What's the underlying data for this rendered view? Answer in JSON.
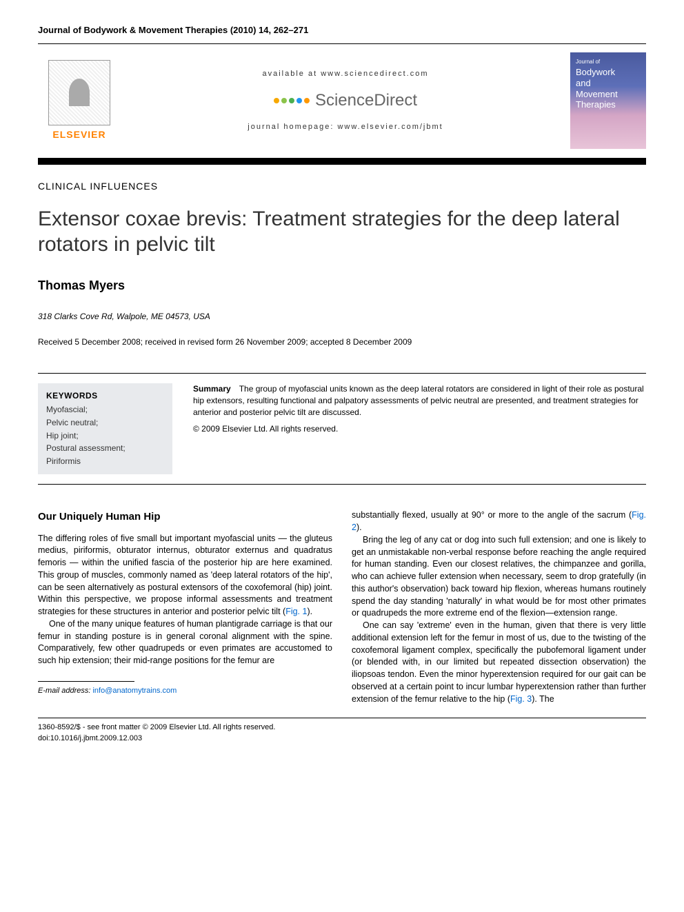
{
  "journal_header": "Journal of Bodywork & Movement Therapies (2010) 14, 262–271",
  "banner": {
    "available": "available at www.sciencedirect.com",
    "sciencedirect": "ScienceDirect",
    "homepage": "journal homepage: www.elsevier.com/jbmt",
    "elsevier_label": "ELSEVIER",
    "cover_journal_of": "Journal of",
    "cover_title_1": "Bodywork",
    "cover_title_2": "and",
    "cover_title_3": "Movement",
    "cover_title_4": "Therapies",
    "sd_dot_colors": [
      "#f7a800",
      "#8bc34a",
      "#4caf50",
      "#2196f3",
      "#ff9800",
      "#f44336"
    ]
  },
  "section_type": "CLINICAL INFLUENCES",
  "article_title": "Extensor coxae brevis: Treatment strategies for the deep lateral rotators in pelvic tilt",
  "author": "Thomas Myers",
  "affiliation": "318 Clarks Cove Rd, Walpole, ME 04573, USA",
  "dates": "Received 5 December 2008; received in revised form 26 November 2009; accepted 8 December 2009",
  "keywords": {
    "heading": "KEYWORDS",
    "list": "Myofascial;\nPelvic neutral;\nHip joint;\nPostural assessment;\nPiriformis"
  },
  "summary": {
    "label": "Summary",
    "text": "The group of myofascial units known as the deep lateral rotators are considered in light of their role as postural hip extensors, resulting functional and palpatory assessments of pelvic neutral are presented, and treatment strategies for anterior and posterior pelvic tilt are discussed.",
    "copyright": "© 2009 Elsevier Ltd. All rights reserved."
  },
  "body": {
    "heading1": "Our Uniquely Human Hip",
    "col1_p1": "The differing roles of five small but important myofascial units — the gluteus medius, piriformis, obturator internus, obturator externus and quadratus femoris — within the unified fascia of the posterior hip are here examined. This group of muscles, commonly named as 'deep lateral rotators of the hip', can be seen alternatively as postural extensors of the coxofemoral (hip) joint. Within this perspective, we propose informal assessments and treatment strategies for these structures in anterior and posterior pelvic tilt (",
    "col1_fig1": "Fig. 1",
    "col1_p1_end": ").",
    "col1_p2": "One of the many unique features of human plantigrade carriage is that our femur in standing posture is in general coronal alignment with the spine. Comparatively, few other quadrupeds or even primates are accustomed to such hip extension; their mid-range positions for the femur are",
    "col2_p1": "substantially flexed, usually at 90° or more to the angle of the sacrum (",
    "col2_fig2": "Fig. 2",
    "col2_p1_end": ").",
    "col2_p2": "Bring the leg of any cat or dog into such full extension; and one is likely to get an unmistakable non-verbal response before reaching the angle required for human standing. Even our closest relatives, the chimpanzee and gorilla, who can achieve fuller extension when necessary, seem to drop gratefully (in this author's observation) back toward hip flexion, whereas humans routinely spend the day standing 'naturally' in what would be for most other primates or quadrupeds the more extreme end of the flexion—extension range.",
    "col2_p3": "One can say 'extreme' even in the human, given that there is very little additional extension left for the femur in most of us, due to the twisting of the coxofemoral ligament complex, specifically the pubofemoral ligament under (or blended with, in our limited but repeated dissection observation) the iliopsoas tendon. Even the minor hyperextension required for our gait can be observed at a certain point to incur lumbar hyperextension rather than further extension of the femur relative to the hip (",
    "col2_fig3": "Fig. 3",
    "col2_p3_end": "). The"
  },
  "email": {
    "label": "E-mail address:",
    "value": "info@anatomytrains.com"
  },
  "footer": {
    "line1": "1360-8592/$ - see front matter © 2009 Elsevier Ltd. All rights reserved.",
    "line2": "doi:10.1016/j.jbmt.2009.12.003"
  },
  "colors": {
    "elsevier_orange": "#ff8200",
    "link_blue": "#0066cc",
    "keywords_bg": "#e8eaed",
    "banner_bar": "#000000"
  }
}
